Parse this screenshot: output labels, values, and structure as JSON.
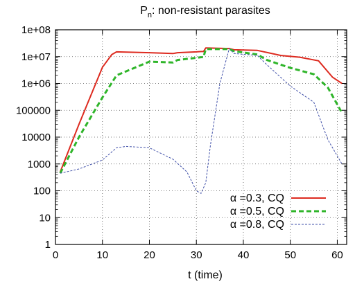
{
  "chart_data": {
    "type": "line",
    "title": "P",
    "title_subscript": "n",
    "title_rest": ": non-resistant parasites",
    "xlabel": "t (time)",
    "ylabel": "",
    "xlim": [
      0,
      62
    ],
    "ylim": [
      1,
      100000000
    ],
    "yscale": "log",
    "grid": true,
    "legend_position": "bottom-right",
    "x_ticks": [
      0,
      10,
      20,
      30,
      40,
      50,
      60
    ],
    "x_tick_labels": [
      "0",
      "10",
      "20",
      "30",
      "40",
      "50",
      "60"
    ],
    "y_ticks": [
      1,
      10,
      100,
      1000,
      10000,
      100000,
      1000000,
      10000000,
      100000000
    ],
    "y_tick_labels": [
      "1",
      "10",
      "100",
      "1000",
      "10000",
      "100000",
      "1e+06",
      "1e+07",
      "1e+08"
    ],
    "series": [
      {
        "name": "α =0.3, CQ",
        "color": "#dd2a1f",
        "dash": "solid",
        "x": [
          1,
          5,
          10,
          12,
          13,
          20,
          25,
          26,
          30,
          31,
          31.5,
          32,
          37,
          38,
          43,
          48,
          52,
          56,
          59,
          61
        ],
        "y": [
          500,
          30000,
          4000000,
          12000000,
          15000000,
          14000000,
          13000000,
          14000000,
          15000000,
          15500000,
          15500000,
          21000000,
          20000000,
          18000000,
          17000000,
          11000000,
          9500000,
          7000000,
          1700000,
          1000000
        ]
      },
      {
        "name": "α =0.5, CQ",
        "color": "#2fb52a",
        "dash": "dashed",
        "x": [
          1,
          5,
          10,
          13,
          20,
          25,
          26,
          30,
          31,
          31.5,
          32,
          37,
          38,
          43,
          45,
          50,
          55,
          58,
          61
        ],
        "y": [
          450,
          10000,
          300000,
          2000000,
          6500000,
          6000000,
          7500000,
          9000000,
          9500000,
          9500000,
          19000000,
          19000000,
          16000000,
          12000000,
          7500000,
          3800000,
          2200000,
          700000,
          80000
        ]
      },
      {
        "name": "α =0.8, CQ",
        "color": "#3f4fa8",
        "dash": "dotted",
        "x": [
          1,
          5,
          10,
          13,
          15,
          20,
          25,
          28,
          30,
          31,
          32,
          33,
          35,
          37,
          38,
          43,
          45,
          50,
          55,
          58,
          61
        ],
        "y": [
          450,
          650,
          1400,
          4000,
          4500,
          4000,
          1500,
          500,
          100,
          80,
          200,
          5000,
          1000000,
          20000000,
          13000000,
          11000000,
          5000000,
          800000,
          200000,
          8000,
          1000
        ]
      }
    ]
  }
}
